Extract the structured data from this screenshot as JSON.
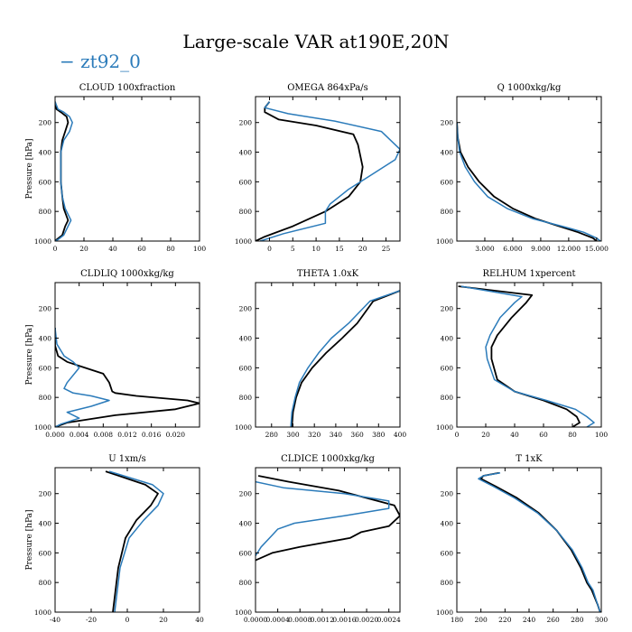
{
  "page": {
    "title": "Large-scale VAR at190E,20N",
    "legend_prefix": "−",
    "legend_label": "zt92_0",
    "legend_color": "#2b7bba"
  },
  "colors": {
    "series_a": "#000000",
    "series_b": "#2b7bba",
    "axis": "#000000"
  },
  "chart_data": [
    {
      "type": "line",
      "title": "CLOUD  100xfraction",
      "ylabel": "Pressure [hPa]",
      "xlim": [
        0,
        100
      ],
      "ylim": [
        1000,
        25
      ],
      "xticks": [
        0,
        20,
        40,
        60,
        80,
        100
      ],
      "xtick_labels": [
        "0",
        "20",
        "40",
        "60",
        "80",
        "100"
      ],
      "yticks": [
        200,
        400,
        600,
        800,
        1000
      ],
      "series": [
        {
          "color": "#000000",
          "x": [
            0,
            1,
            4,
            8,
            9,
            7,
            5,
            4,
            4,
            4,
            5,
            6,
            9,
            7,
            5,
            1,
            0
          ],
          "y": [
            60,
            110,
            130,
            160,
            200,
            260,
            320,
            400,
            500,
            600,
            700,
            780,
            860,
            900,
            960,
            990,
            1000
          ]
        },
        {
          "color": "#2b7bba",
          "x": [
            0,
            2,
            6,
            10,
            12,
            10,
            6,
            4,
            4,
            4,
            5,
            7,
            11,
            9,
            6,
            2,
            0
          ],
          "y": [
            60,
            110,
            130,
            160,
            200,
            260,
            320,
            400,
            500,
            600,
            700,
            780,
            860,
            900,
            960,
            990,
            1000
          ]
        }
      ]
    },
    {
      "type": "line",
      "title": "OMEGA  864xPa/s",
      "ylabel": "",
      "xlim": [
        -3,
        28
      ],
      "ylim": [
        1000,
        25
      ],
      "xticks": [
        0,
        5,
        10,
        15,
        20,
        25
      ],
      "xtick_labels": [
        "0",
        "5",
        "10",
        "15",
        "20",
        "25"
      ],
      "yticks": [
        200,
        400,
        600,
        800,
        1000
      ],
      "series": [
        {
          "color": "#000000",
          "x": [
            0,
            -1,
            -1,
            2,
            10,
            18,
            19,
            20,
            19.5,
            17,
            12,
            5,
            -1,
            -3
          ],
          "y": [
            60,
            100,
            130,
            180,
            220,
            280,
            350,
            500,
            600,
            700,
            800,
            900,
            970,
            1000
          ]
        },
        {
          "color": "#2b7bba",
          "x": [
            0,
            -1,
            4,
            14,
            24,
            28,
            27,
            22,
            17,
            13,
            12,
            12,
            3,
            -2
          ],
          "y": [
            60,
            100,
            140,
            190,
            260,
            380,
            450,
            550,
            650,
            750,
            800,
            880,
            950,
            1000
          ]
        }
      ]
    },
    {
      "type": "line",
      "title": "Q  1000xkg/kg",
      "ylabel": "",
      "xlim": [
        0,
        15.5
      ],
      "ylim": [
        1000,
        25
      ],
      "xticks": [
        3,
        6,
        9,
        12,
        15
      ],
      "xtick_labels": [
        "3.000",
        "6.000",
        "9.000",
        "12.000",
        "15.000"
      ],
      "yticks": [
        200,
        400,
        600,
        800,
        1000
      ],
      "series": [
        {
          "color": "#000000",
          "x": [
            0.01,
            0.1,
            0.4,
            1.2,
            2.4,
            4.0,
            6.0,
            8.5,
            11.0,
            13.0,
            14.6,
            15.0
          ],
          "y": [
            200,
            300,
            400,
            500,
            600,
            700,
            780,
            850,
            900,
            940,
            980,
            1000
          ]
        },
        {
          "color": "#2b7bba",
          "x": [
            0.01,
            0.1,
            0.3,
            0.9,
            1.9,
            3.3,
            5.4,
            8.2,
            11.3,
            13.6,
            15.0,
            15.4
          ],
          "y": [
            200,
            300,
            400,
            500,
            600,
            700,
            780,
            850,
            900,
            940,
            980,
            1000
          ]
        }
      ]
    },
    {
      "type": "line",
      "title": "CLDLIQ  1000xkg/kg",
      "ylabel": "Pressure [hPa]",
      "xlim": [
        0,
        0.024
      ],
      "ylim": [
        1000,
        25
      ],
      "xticks": [
        0,
        0.004,
        0.008,
        0.012,
        0.016,
        0.02
      ],
      "xtick_labels": [
        "0.000",
        "0.004",
        "0.008",
        "0.012",
        "0.016",
        "0.020"
      ],
      "yticks": [
        200,
        400,
        600,
        800,
        1000
      ],
      "series": [
        {
          "color": "#000000",
          "x": [
            0,
            0,
            0.0005,
            0.002,
            0.005,
            0.008,
            0.009,
            0.0095,
            0.01,
            0.0135,
            0.022,
            0.024,
            0.02,
            0.01,
            0.002,
            0
          ],
          "y": [
            330,
            450,
            520,
            560,
            600,
            640,
            700,
            760,
            770,
            790,
            820,
            840,
            880,
            920,
            970,
            1000
          ]
        },
        {
          "color": "#2b7bba",
          "x": [
            0,
            0.0003,
            0.0015,
            0.003,
            0.004,
            0.003,
            0.002,
            0.0015,
            0.003,
            0.006,
            0.009,
            0.006,
            0.002,
            0.004,
            0.001,
            0
          ],
          "y": [
            330,
            440,
            520,
            560,
            600,
            650,
            700,
            740,
            770,
            790,
            820,
            860,
            900,
            940,
            980,
            1000
          ]
        }
      ]
    },
    {
      "type": "line",
      "title": "THETA  1.0xK",
      "ylabel": "",
      "xlim": [
        265,
        400
      ],
      "ylim": [
        1000,
        25
      ],
      "xticks": [
        280,
        300,
        320,
        340,
        360,
        380,
        400
      ],
      "xtick_labels": [
        "280",
        "300",
        "320",
        "340",
        "360",
        "380",
        "400"
      ],
      "yticks": [
        200,
        400,
        600,
        800,
        1000
      ],
      "series": [
        {
          "color": "#000000",
          "x": [
            299,
            300,
            303,
            308,
            318,
            331,
            346,
            360,
            375,
            400
          ],
          "y": [
            1000,
            900,
            800,
            700,
            600,
            500,
            400,
            300,
            150,
            80
          ]
        },
        {
          "color": "#2b7bba",
          "x": [
            298,
            299,
            302,
            306,
            314,
            324,
            336,
            352,
            372,
            400
          ],
          "y": [
            1000,
            900,
            800,
            700,
            600,
            500,
            400,
            300,
            150,
            80
          ]
        }
      ]
    },
    {
      "type": "line",
      "title": "RELHUM  1xpercent",
      "ylabel": "",
      "xlim": [
        0,
        100
      ],
      "ylim": [
        1000,
        25
      ],
      "xticks": [
        0,
        20,
        40,
        60,
        80,
        100
      ],
      "xtick_labels": [
        "0",
        "20",
        "40",
        "60",
        "80",
        "100"
      ],
      "yticks": [
        200,
        400,
        600,
        800,
        1000
      ],
      "series": [
        {
          "color": "#000000",
          "x": [
            1,
            52,
            48,
            38,
            28,
            24,
            24,
            28,
            40,
            60,
            76,
            83,
            85,
            80
          ],
          "y": [
            50,
            110,
            160,
            260,
            380,
            460,
            540,
            680,
            760,
            820,
            880,
            930,
            970,
            1000
          ]
        },
        {
          "color": "#2b7bba",
          "x": [
            3,
            45,
            40,
            30,
            23,
            20,
            21,
            26,
            40,
            62,
            82,
            90,
            95,
            90
          ],
          "y": [
            50,
            120,
            160,
            260,
            380,
            460,
            540,
            680,
            760,
            820,
            880,
            930,
            970,
            1000
          ]
        }
      ]
    },
    {
      "type": "line",
      "title": "U  1xm/s",
      "ylabel": "Pressure [hPa]",
      "xlim": [
        -40,
        40
      ],
      "ylim": [
        1000,
        25
      ],
      "xticks": [
        -40,
        -20,
        0,
        20,
        40
      ],
      "xtick_labels": [
        "-40",
        "-20",
        "0",
        "20",
        "40"
      ],
      "yticks": [
        200,
        400,
        600,
        800,
        1000
      ],
      "series": [
        {
          "color": "#000000",
          "x": [
            -12,
            10,
            17,
            13,
            5,
            -1,
            -5,
            -7,
            -8
          ],
          "y": [
            50,
            140,
            200,
            280,
            380,
            500,
            700,
            900,
            1000
          ]
        },
        {
          "color": "#2b7bba",
          "x": [
            -10,
            14,
            20,
            17,
            9,
            1,
            -4,
            -6,
            -7
          ],
          "y": [
            50,
            140,
            200,
            280,
            380,
            500,
            700,
            900,
            1000
          ]
        }
      ]
    },
    {
      "type": "line",
      "title": "CLDICE  1000xkg/kg",
      "ylabel": "",
      "xlim": [
        0,
        0.0026
      ],
      "ylim": [
        1000,
        25
      ],
      "xticks": [
        0,
        0.0004,
        0.0008,
        0.0012,
        0.0016,
        0.002,
        0.0024
      ],
      "xtick_labels": [
        "0.0000",
        "0.0004",
        "0.0008",
        "0.0012",
        "0.0016",
        "0.0020",
        "0.0024"
      ],
      "yticks": [
        200,
        400,
        600,
        800,
        1000
      ],
      "series": [
        {
          "color": "#000000",
          "x": [
            5e-05,
            0.0006,
            0.0015,
            0.0025,
            0.0026,
            0.0024,
            0.0019,
            0.0017,
            0.0008,
            0.0003,
            0
          ],
          "y": [
            80,
            120,
            180,
            280,
            350,
            420,
            460,
            500,
            560,
            600,
            650
          ]
        },
        {
          "color": "#2b7bba",
          "x": [
            0,
            0.0005,
            0.0016,
            0.0024,
            0.0024,
            0.0016,
            0.0007,
            0.0004,
            0.0003,
            0.0001,
            0
          ],
          "y": [
            120,
            160,
            200,
            250,
            300,
            350,
            400,
            440,
            480,
            560,
            620
          ]
        }
      ]
    },
    {
      "type": "line",
      "title": "T  1xK",
      "ylabel": "",
      "xlim": [
        180,
        300
      ],
      "ylim": [
        1000,
        25
      ],
      "xticks": [
        180,
        200,
        220,
        240,
        260,
        280,
        300
      ],
      "xtick_labels": [
        "180",
        "200",
        "220",
        "240",
        "260",
        "280",
        "300"
      ],
      "yticks": [
        200,
        400,
        600,
        800,
        1000
      ],
      "series": [
        {
          "color": "#000000",
          "x": [
            215,
            202,
            200,
            212,
            230,
            248,
            263,
            275,
            283,
            288,
            292,
            297,
            299
          ],
          "y": [
            60,
            80,
            100,
            150,
            230,
            330,
            450,
            580,
            700,
            800,
            850,
            950,
            1000
          ]
        },
        {
          "color": "#2b7bba",
          "x": [
            216,
            202,
            198,
            210,
            228,
            247,
            263,
            276,
            284,
            289,
            293,
            297,
            299
          ],
          "y": [
            60,
            80,
            100,
            150,
            230,
            330,
            450,
            580,
            700,
            800,
            850,
            950,
            1000
          ]
        }
      ]
    }
  ]
}
